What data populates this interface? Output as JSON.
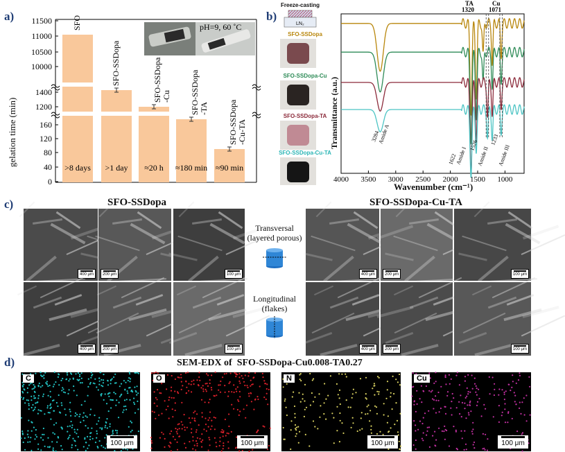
{
  "panel_a": {
    "letter": "a)",
    "ylabel": "gelation time (min)",
    "yticks_top": [
      "11500",
      "11000",
      "10500",
      "10000"
    ],
    "yticks_mid": [
      "1400",
      "1200"
    ],
    "yticks_bot": [
      "160",
      "120",
      "80",
      "40",
      "0"
    ],
    "photo_label": "pH=9, 60 ˚C",
    "bars": [
      {
        "name": "SFO",
        "label": "SFO",
        "note": ">8 days"
      },
      {
        "name": "SFO-SSDopa",
        "label": "SFO-SSDopa",
        "note": ">1 day"
      },
      {
        "name": "SFO-SSDopa-Cu",
        "label": "SFO-SSDopa\n-Cu",
        "note": "≈20 h"
      },
      {
        "name": "SFO-SSDopa-TA",
        "label": "SFO-SSDopa\n-TA",
        "note": "≈180 min"
      },
      {
        "name": "SFO-SSDopa-Cu-TA",
        "label": "SFO-SSDopa\n-Cu-TA",
        "note": "≈90 min"
      }
    ]
  },
  "panel_b": {
    "letter": "b)",
    "freeze_label": "Freeze-casting",
    "ln2_label": "LN₂",
    "samples": [
      {
        "label": "SFO-SSDopa",
        "color": "#b8860b"
      },
      {
        "label": "SFO-SSDopa-Cu",
        "color": "#2e8b57"
      },
      {
        "label": "SFO-SSDopa-TA",
        "color": "#8b2a3a"
      },
      {
        "label": "SFO-SSDopa-Cu-TA",
        "color": "#2ab5b5"
      }
    ],
    "annotations": {
      "ta": "TA",
      "ta_val": "1320",
      "cu": "Cu",
      "cu_val": "1071",
      "a3284": "3284",
      "amideA": "Amide A",
      "a1622": "1622",
      "amide1": "Amide I",
      "a1526": "1526",
      "amide2": "Amide II",
      "a1233": "1233",
      "amide3": "Amide III"
    }
  },
  "chart_data": {
    "type": "line",
    "xlabel": "Wavenumber (cm⁻¹)",
    "ylabel": "Transmittance (a.u.)",
    "xlim": [
      4000,
      650
    ],
    "x_ticks": [
      "4000",
      "3500",
      "3000",
      "2500",
      "2000",
      "1500",
      "1000"
    ],
    "x_tick_values": [
      4000,
      3500,
      3000,
      2500,
      2000,
      1500,
      1000
    ],
    "series": [
      {
        "name": "SFO-SSDopa",
        "color": "#b8860b",
        "baseline": 0.94,
        "peaks": [
          [
            3284,
            0.3,
            80
          ],
          [
            1622,
            0.55,
            25
          ],
          [
            1526,
            0.45,
            22
          ],
          [
            1400,
            0.2,
            18
          ],
          [
            1233,
            0.25,
            18
          ],
          [
            1071,
            0.2,
            18
          ]
        ]
      },
      {
        "name": "SFO-SSDopa-Cu",
        "color": "#2e8b57",
        "baseline": 0.76,
        "peaks": [
          [
            3284,
            0.25,
            80
          ],
          [
            1622,
            0.55,
            25
          ],
          [
            1526,
            0.4,
            22
          ],
          [
            1400,
            0.2,
            18
          ],
          [
            1233,
            0.22,
            18
          ],
          [
            1071,
            0.18,
            18
          ]
        ]
      },
      {
        "name": "SFO-SSDopa-TA",
        "color": "#8b2a3a",
        "baseline": 0.57,
        "peaks": [
          [
            3284,
            0.18,
            80
          ],
          [
            1622,
            0.55,
            25
          ],
          [
            1526,
            0.35,
            22
          ],
          [
            1320,
            0.22,
            18
          ],
          [
            1233,
            0.2,
            18
          ],
          [
            1071,
            0.15,
            18
          ]
        ]
      },
      {
        "name": "SFO-SSDopa-Cu-TA",
        "color": "#4cc4c4",
        "baseline": 0.4,
        "peaks": [
          [
            3284,
            0.14,
            80
          ],
          [
            1622,
            0.4,
            25
          ],
          [
            1526,
            0.25,
            22
          ],
          [
            1320,
            0.18,
            18
          ],
          [
            1233,
            0.18,
            18
          ],
          [
            1071,
            0.14,
            18
          ]
        ]
      }
    ]
  },
  "panel_c": {
    "letter": "c)",
    "left_title": "SFO-SSDopa",
    "right_title": "SFO-SSDopa-Cu-TA",
    "transversal": "Transversal",
    "transversal_sub": "(layered porous)",
    "longitudinal": "Longitudinal",
    "longitudinal_sub": "(flakes)",
    "scales": {
      "s400": "400 μm",
      "s200": "200 μm",
      "s100": "100 μm"
    }
  },
  "panel_d": {
    "letter": "d)",
    "title": "SEM-EDX of  SFO-SSDopa-Cu0.008-TA0.27",
    "maps": [
      {
        "element": "C",
        "color": "#22c4c4"
      },
      {
        "element": "O",
        "color": "#d8202a"
      },
      {
        "element": "N",
        "color": "#d8d060"
      },
      {
        "element": "Cu",
        "color": "#c030a0"
      }
    ],
    "scale": "100 μm"
  }
}
